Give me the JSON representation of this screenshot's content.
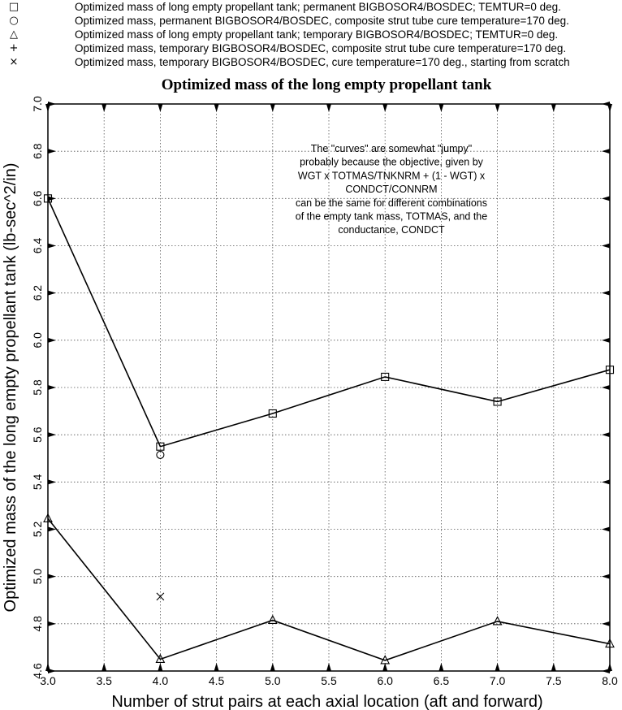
{
  "legend": [
    {
      "symbol": "□",
      "icon": "square-marker-icon",
      "label": "Optimized mass of long empty propellant tank; permanent BIGBOSOR4/BOSDEC; TEMTUR=0 deg."
    },
    {
      "symbol": "○",
      "icon": "circle-marker-icon",
      "label": "Optimized mass, permanent BIGBOSOR4/BOSDEC, composite strut tube cure temperature=170 deg."
    },
    {
      "symbol": "△",
      "icon": "triangle-marker-icon",
      "label": "Optimized mass of long empty propellant tank; temporary BIGBOSOR4/BOSDEC; TEMTUR=0 deg."
    },
    {
      "symbol": "+",
      "icon": "plus-marker-icon",
      "label": "Optimized mass, temporary BIGBOSOR4/BOSDEC, composite strut tube cure temperature=170 deg."
    },
    {
      "symbol": "×",
      "icon": "cross-marker-icon",
      "label": "Optimized mass, temporary BIGBOSOR4/BOSDEC, cure temperature=170 deg., starting from scratch"
    }
  ],
  "note_lines": [
    "The \"curves\" are somewhat \"jumpy\"",
    "probably because the objective, given by",
    "WGT x TOTMAS/TNKNRM + (1 - WGT) x",
    "CONDCT/CONNRM",
    "can be the same for different combinations",
    "of the empty tank mass, TOTMAS, and the",
    "conductance, CONDCT"
  ],
  "chart_data": {
    "type": "line",
    "title": "Optimized mass of the long empty propellant tank",
    "xlabel": "Number of strut pairs at each axial location (aft and forward)",
    "ylabel": "Optimized mass of the long empty propellant tank (lb-sec^2/in)",
    "xlim": [
      3.0,
      8.0
    ],
    "ylim": [
      4.6,
      7.0
    ],
    "xticks": [
      "3.0",
      "3.5",
      "4.0",
      "4.5",
      "5.0",
      "5.5",
      "6.0",
      "6.5",
      "7.0",
      "7.5",
      "8.0"
    ],
    "yticks": [
      "4.6",
      "4.8",
      "5.0",
      "5.2",
      "5.4",
      "5.6",
      "5.8",
      "6.0",
      "6.2",
      "6.4",
      "6.6",
      "6.8",
      "7.0"
    ],
    "grid": true,
    "series": [
      {
        "name": "Optimized mass of long empty propellant tank; permanent BIGBOSOR4/BOSDEC; TEMTUR=0 deg.",
        "marker": "square",
        "line": true,
        "points": [
          [
            3.0,
            6.6
          ],
          [
            4.0,
            5.55
          ],
          [
            5.0,
            5.69
          ],
          [
            6.0,
            5.845
          ],
          [
            7.0,
            5.74
          ],
          [
            8.0,
            5.875
          ]
        ]
      },
      {
        "name": "Optimized mass, permanent BIGBOSOR4/BOSDEC, composite strut tube cure temperature=170 deg.",
        "marker": "circle",
        "line": false,
        "points": [
          [
            4.0,
            5.515
          ]
        ]
      },
      {
        "name": "Optimized mass of long empty propellant tank; temporary BIGBOSOR4/BOSDEC; TEMTUR=0 deg.",
        "marker": "triangle",
        "line": true,
        "points": [
          [
            3.0,
            5.245
          ],
          [
            4.0,
            4.65
          ],
          [
            5.0,
            4.815
          ],
          [
            6.0,
            4.645
          ],
          [
            7.0,
            4.81
          ],
          [
            8.0,
            4.715
          ]
        ]
      },
      {
        "name": "Optimized mass, temporary BIGBOSOR4/BOSDEC, composite strut tube cure temperature=170 deg.",
        "marker": "plus",
        "line": false,
        "points": []
      },
      {
        "name": "Optimized mass, temporary BIGBOSOR4/BOSDEC, cure temperature=170 deg., starting from scratch",
        "marker": "cross",
        "line": false,
        "points": [
          [
            4.0,
            4.915
          ]
        ]
      }
    ]
  }
}
